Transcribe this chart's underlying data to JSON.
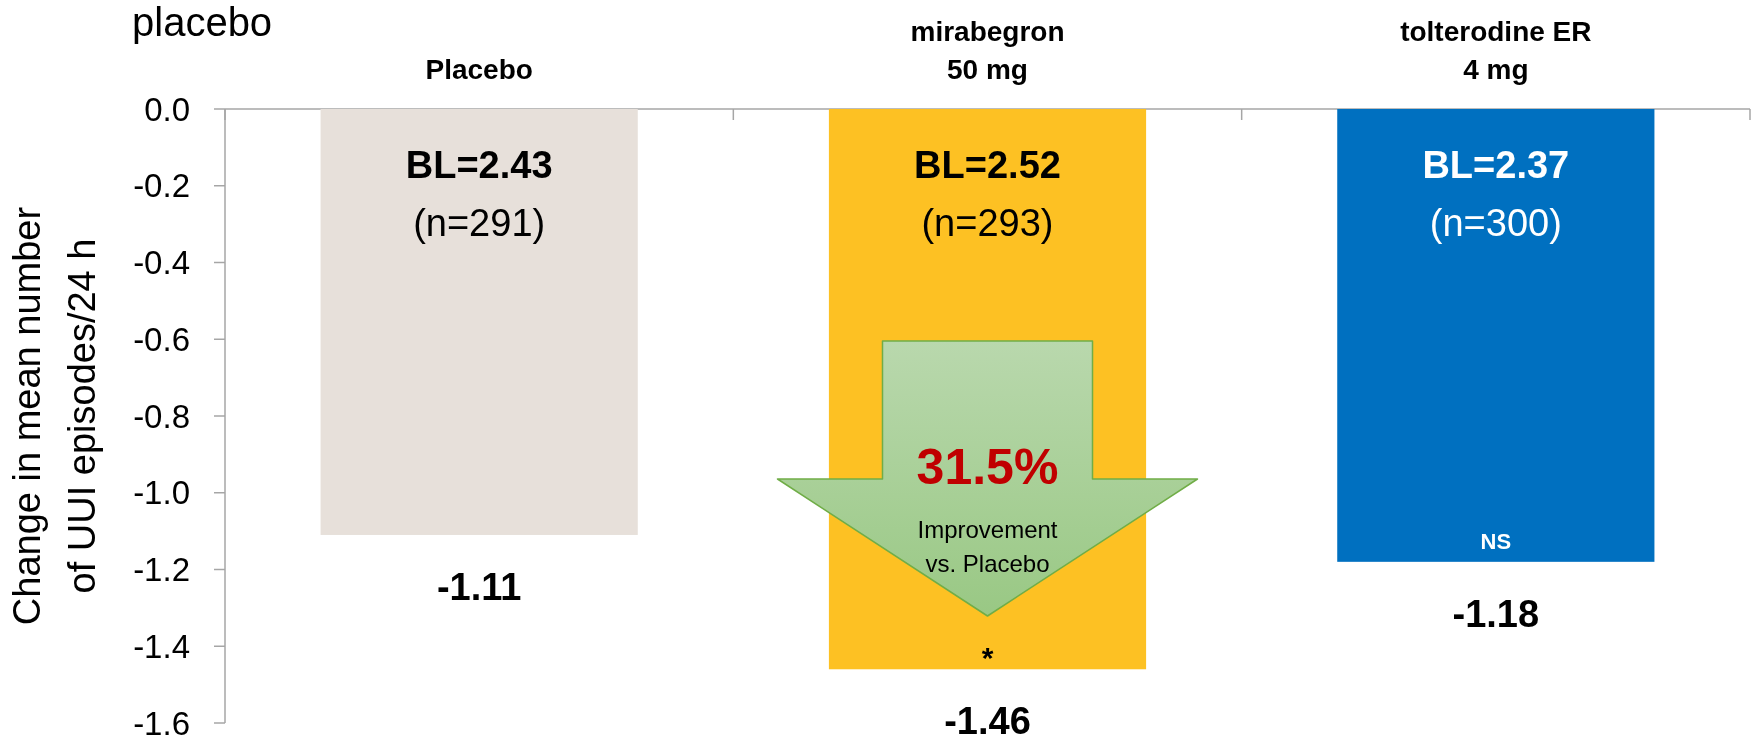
{
  "chart_data": {
    "type": "bar",
    "title": "placebo",
    "ylabel": "Change in mean number\nof UUI episodes/24 h",
    "categories": [
      "Placebo",
      "mirabegron\n50 mg",
      "tolterodine ER\n4 mg"
    ],
    "values": [
      -1.11,
      -1.46,
      -1.18
    ],
    "colors": [
      "#e7e0da",
      "#fdc123",
      "#0070c0"
    ],
    "ylim": [
      -1.6,
      0
    ],
    "yticks": [
      {
        "value": 0,
        "label": "0.0"
      },
      -0.2,
      -0.4,
      -0.6,
      -0.8,
      {
        "value": -1,
        "label": "-1.0"
      },
      -1.2,
      -1.4,
      -1.6
    ],
    "data_labels": true,
    "annotations": [
      "BL=2.43",
      "(n=291)",
      "BL=2.52",
      "(n=293)",
      "BL=2.37",
      "(n=300)",
      "31.5%",
      "Improvement\nvs. Placebo",
      "*",
      "NS"
    ]
  }
}
